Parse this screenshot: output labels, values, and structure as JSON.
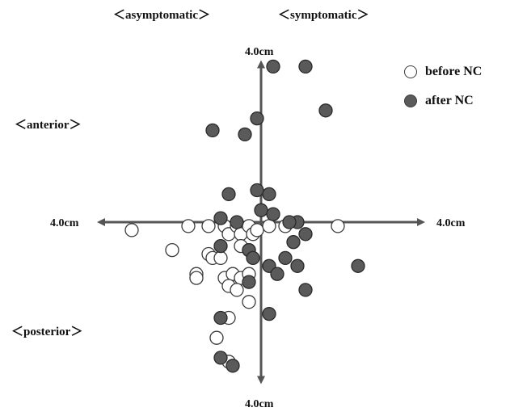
{
  "chart_data": {
    "type": "scatter",
    "title": "",
    "xlabel": "",
    "ylabel": "",
    "xlim": [
      -4,
      4
    ],
    "ylim": [
      -4,
      4
    ],
    "grid": false,
    "legend_position": "top-right",
    "axis_end_labels": {
      "left": "4.0cm",
      "right": "4.0cm",
      "top": "4.0cm",
      "bottom": "4.0cm"
    },
    "region_labels": {
      "top_left": "＜asymptomatic＞",
      "top_right": "＜symptomatic＞",
      "upper_left": "＜anterior＞",
      "lower_left": "＜posterior＞"
    },
    "series": [
      {
        "name": "before NC",
        "marker": "open-circle",
        "color": "#ffffff",
        "edge": "#3a3a3a",
        "points": [
          [
            -3.2,
            -0.2
          ],
          [
            -1.8,
            -0.1
          ],
          [
            -2.2,
            -0.7
          ],
          [
            -1.3,
            -0.1
          ],
          [
            -0.9,
            -0.1
          ],
          [
            -0.8,
            -0.3
          ],
          [
            -0.6,
            -0.1
          ],
          [
            -0.5,
            -0.3
          ],
          [
            -0.3,
            -0.1
          ],
          [
            -0.2,
            -0.3
          ],
          [
            -0.1,
            -0.2
          ],
          [
            0.2,
            -0.1
          ],
          [
            0.6,
            -0.1
          ],
          [
            1.9,
            -0.1
          ],
          [
            -1.3,
            -0.8
          ],
          [
            -1.2,
            -0.9
          ],
          [
            -1.0,
            -0.9
          ],
          [
            -0.5,
            -0.6
          ],
          [
            -0.3,
            -0.7
          ],
          [
            -1.6,
            -1.3
          ],
          [
            -1.6,
            -1.4
          ],
          [
            -0.9,
            -1.4
          ],
          [
            -0.7,
            -1.3
          ],
          [
            -0.5,
            -1.4
          ],
          [
            -0.3,
            -1.3
          ],
          [
            -0.8,
            -1.6
          ],
          [
            -0.6,
            -1.7
          ],
          [
            -0.3,
            -2.0
          ],
          [
            -0.8,
            -2.4
          ],
          [
            -1.1,
            -2.9
          ],
          [
            -0.8,
            -3.5
          ]
        ]
      },
      {
        "name": "after NC",
        "marker": "filled-circle",
        "color": "#5a5a5a",
        "edge": "#2a2a2a",
        "points": [
          [
            0.3,
            3.9
          ],
          [
            1.1,
            3.9
          ],
          [
            1.6,
            2.8
          ],
          [
            -0.1,
            2.6
          ],
          [
            -1.2,
            2.3
          ],
          [
            -0.4,
            2.2
          ],
          [
            -0.8,
            0.7
          ],
          [
            -0.1,
            0.8
          ],
          [
            0.2,
            0.7
          ],
          [
            0.0,
            0.3
          ],
          [
            0.3,
            0.2
          ],
          [
            -1.0,
            0.1
          ],
          [
            -0.6,
            0.0
          ],
          [
            0.9,
            0.0
          ],
          [
            0.7,
            0.0
          ],
          [
            1.1,
            -0.3
          ],
          [
            0.8,
            -0.5
          ],
          [
            -1.0,
            -0.6
          ],
          [
            -0.3,
            -0.7
          ],
          [
            -0.2,
            -0.9
          ],
          [
            0.6,
            -0.9
          ],
          [
            0.9,
            -1.1
          ],
          [
            0.2,
            -1.1
          ],
          [
            0.4,
            -1.3
          ],
          [
            2.4,
            -1.1
          ],
          [
            -0.3,
            -1.5
          ],
          [
            1.1,
            -1.7
          ],
          [
            0.2,
            -2.3
          ],
          [
            -1.0,
            -2.4
          ],
          [
            -1.0,
            -3.4
          ],
          [
            -0.7,
            -3.6
          ]
        ]
      }
    ]
  }
}
